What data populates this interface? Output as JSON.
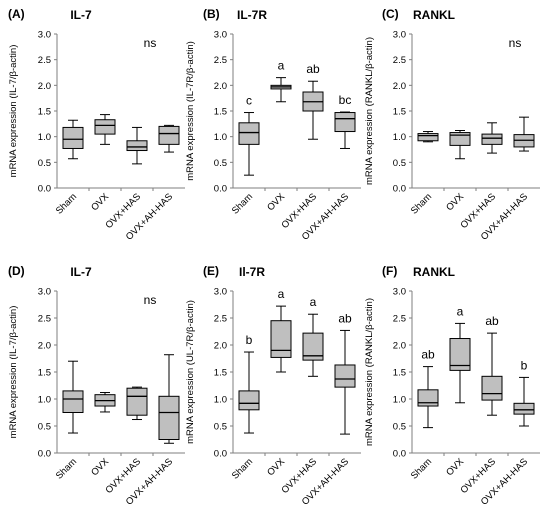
{
  "chart_data": [
    {
      "type": "boxplot",
      "panel": "(A)",
      "title": "IL-7",
      "ylabel": "mRNA expression (IL-7/β-actin)",
      "ylim": [
        0,
        3
      ],
      "yticks": [
        "0.0",
        "0.5",
        "1.0",
        "1.5",
        "2.0",
        "2.5",
        "3.0"
      ],
      "categories": [
        "Sham",
        "OVX",
        "OVX+HAS",
        "OVX+AH-HAS"
      ],
      "boxes": [
        {
          "min": 0.57,
          "q1": 0.77,
          "median": 0.95,
          "q3": 1.18,
          "max": 1.32
        },
        {
          "min": 0.85,
          "q1": 1.05,
          "median": 1.22,
          "q3": 1.33,
          "max": 1.43
        },
        {
          "min": 0.47,
          "q1": 0.73,
          "median": 0.8,
          "q3": 0.92,
          "max": 1.18
        },
        {
          "min": 0.7,
          "q1": 0.85,
          "median": 1.06,
          "q3": 1.2,
          "max": 1.22
        }
      ],
      "annotations": [
        "ns"
      ]
    },
    {
      "type": "boxplot",
      "panel": "(B)",
      "title": "IL-7R",
      "ylabel": "mRNA expression (IL-7R/β-actin)",
      "ylim": [
        0,
        3
      ],
      "yticks": [
        "0.0",
        "0.5",
        "1.0",
        "1.5",
        "2.0",
        "2.5",
        "3.0"
      ],
      "categories": [
        "Sham",
        "OVX",
        "OVX+HAS",
        "OVX+AH-HAS"
      ],
      "boxes": [
        {
          "min": 0.25,
          "q1": 0.85,
          "median": 1.08,
          "q3": 1.27,
          "max": 1.47
        },
        {
          "min": 1.68,
          "q1": 1.93,
          "median": 1.97,
          "q3": 2.0,
          "max": 2.15
        },
        {
          "min": 0.95,
          "q1": 1.5,
          "median": 1.68,
          "q3": 1.87,
          "max": 2.08
        },
        {
          "min": 0.77,
          "q1": 1.1,
          "median": 1.35,
          "q3": 1.47,
          "max": 1.48
        }
      ],
      "annotations": [
        "c",
        "a",
        "ab",
        "bc"
      ]
    },
    {
      "type": "boxplot",
      "panel": "(C)",
      "title": "RANKL",
      "ylabel": "mRNA expression (RANKL/β-actin)",
      "ylim": [
        0,
        3
      ],
      "yticks": [
        "0.0",
        "0.5",
        "1.0",
        "1.5",
        "2.0",
        "2.5",
        "3.0"
      ],
      "categories": [
        "Sham",
        "OVX",
        "OVX+HAS",
        "OVX+AH-HAS"
      ],
      "boxes": [
        {
          "min": 0.9,
          "q1": 0.92,
          "median": 1.02,
          "q3": 1.06,
          "max": 1.1
        },
        {
          "min": 0.57,
          "q1": 0.83,
          "median": 1.03,
          "q3": 1.08,
          "max": 1.12
        },
        {
          "min": 0.68,
          "q1": 0.85,
          "median": 0.97,
          "q3": 1.05,
          "max": 1.27
        },
        {
          "min": 0.72,
          "q1": 0.8,
          "median": 0.93,
          "q3": 1.04,
          "max": 1.38
        }
      ],
      "annotations": [
        "ns"
      ]
    },
    {
      "type": "boxplot",
      "panel": "(D)",
      "title": "IL-7",
      "ylabel": "mRNA expression (IL-7/β-actin)",
      "ylim": [
        0,
        3
      ],
      "yticks": [
        "0.0",
        "0.5",
        "1.0",
        "1.5",
        "2.0",
        "2.5",
        "3.0"
      ],
      "categories": [
        "Sham",
        "OVX",
        "OVX+HAS",
        "OVX+AH-HAS"
      ],
      "boxes": [
        {
          "min": 0.37,
          "q1": 0.75,
          "median": 1.0,
          "q3": 1.15,
          "max": 1.7
        },
        {
          "min": 0.76,
          "q1": 0.87,
          "median": 0.97,
          "q3": 1.08,
          "max": 1.12
        },
        {
          "min": 0.62,
          "q1": 0.7,
          "median": 1.05,
          "q3": 1.2,
          "max": 1.22
        },
        {
          "min": 0.18,
          "q1": 0.25,
          "median": 0.75,
          "q3": 1.05,
          "max": 1.82
        }
      ],
      "annotations": [
        "ns"
      ]
    },
    {
      "type": "boxplot",
      "panel": "(E)",
      "title": "Il-7R",
      "ylabel": "mRNA expression (UL-7R/β-actin)",
      "ylim": [
        0,
        3
      ],
      "yticks": [
        "0.0",
        "0.5",
        "1.0",
        "1.5",
        "2.0",
        "2.5",
        "3.0"
      ],
      "categories": [
        "Sham",
        "OVX",
        "OVX+HAS",
        "OVX+AH-HAS"
      ],
      "boxes": [
        {
          "min": 0.37,
          "q1": 0.8,
          "median": 0.92,
          "q3": 1.15,
          "max": 1.87
        },
        {
          "min": 1.5,
          "q1": 1.77,
          "median": 1.9,
          "q3": 2.45,
          "max": 2.72
        },
        {
          "min": 1.42,
          "q1": 1.72,
          "median": 1.8,
          "q3": 2.22,
          "max": 2.57
        },
        {
          "min": 0.35,
          "q1": 1.22,
          "median": 1.37,
          "q3": 1.63,
          "max": 2.27
        }
      ],
      "annotations": [
        "b",
        "a",
        "a",
        "ab"
      ]
    },
    {
      "type": "boxplot",
      "panel": "(F)",
      "title": "RANKL",
      "ylabel": "mRNA expression (RANKL/β-actin)",
      "ylim": [
        0,
        3
      ],
      "yticks": [
        "0.0",
        "0.5",
        "1.0",
        "1.5",
        "2.0",
        "2.5",
        "3.0"
      ],
      "categories": [
        "Sham",
        "OVX",
        "OVX+HAS",
        "OVX+AH-HAS"
      ],
      "boxes": [
        {
          "min": 0.47,
          "q1": 0.87,
          "median": 0.93,
          "q3": 1.17,
          "max": 1.6
        },
        {
          "min": 0.93,
          "q1": 1.53,
          "median": 1.62,
          "q3": 2.12,
          "max": 2.4
        },
        {
          "min": 0.7,
          "q1": 0.98,
          "median": 1.1,
          "q3": 1.42,
          "max": 2.22
        },
        {
          "min": 0.5,
          "q1": 0.72,
          "median": 0.8,
          "q3": 0.92,
          "max": 1.4
        }
      ],
      "annotations": [
        "ab",
        "a",
        "ab",
        "b"
      ]
    }
  ],
  "style": {
    "box_fill": "#bfbfbf",
    "stroke": "#000000",
    "axis_color": "#7f7f7f",
    "text": "#000000"
  }
}
